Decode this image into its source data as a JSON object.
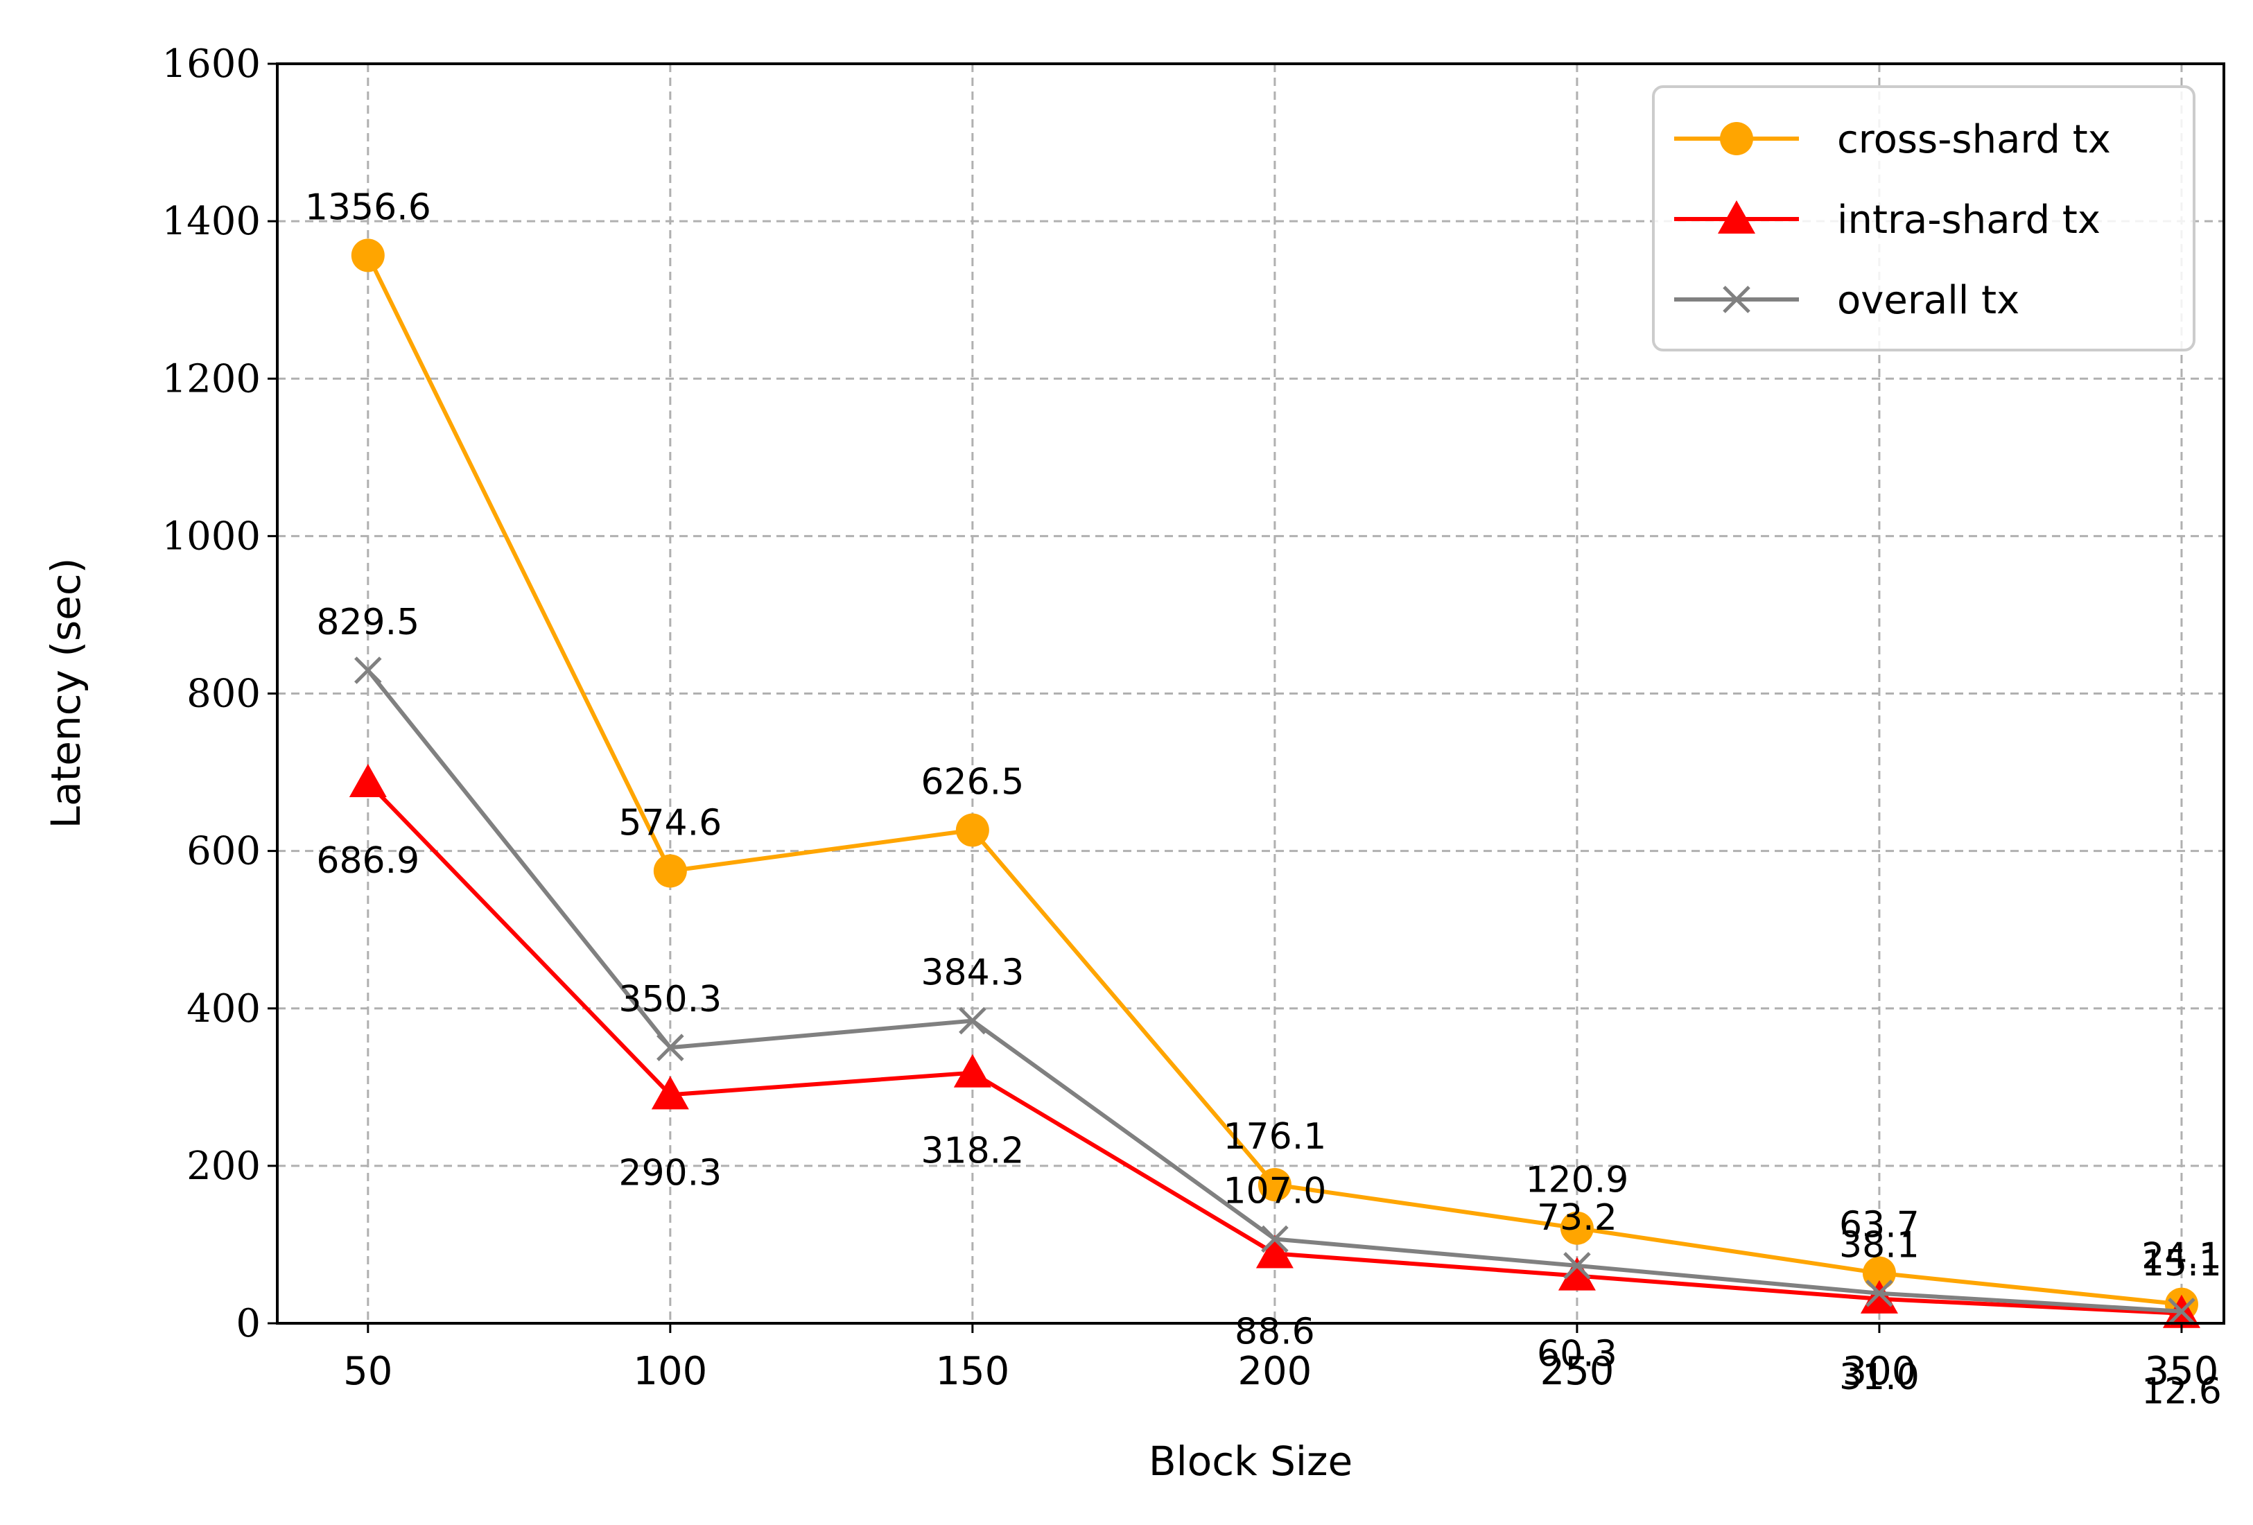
{
  "chart_data": {
    "type": "line",
    "title": "",
    "xlabel": "Block Size",
    "ylabel": "Latency (sec)",
    "x": [
      50,
      100,
      150,
      200,
      250,
      300,
      350
    ],
    "xlim": [
      35,
      357
    ],
    "ylim": [
      0,
      1600
    ],
    "yticks": [
      0,
      200,
      400,
      600,
      800,
      1000,
      1200,
      1400,
      1600
    ],
    "grid": true,
    "legend_position": "top-right",
    "series": [
      {
        "name": "cross-shard tx",
        "color": "#FFA500",
        "marker": "circle",
        "values": [
          1356.6,
          574.6,
          626.5,
          176.1,
          120.9,
          63.7,
          24.1
        ],
        "labels": [
          "1356.6",
          "574.6",
          "626.5",
          "176.1",
          "120.9",
          "63.7",
          "24.1"
        ],
        "label_side": "above"
      },
      {
        "name": "intra-shard tx",
        "color": "#FF0000",
        "marker": "triangle",
        "values": [
          686.9,
          290.3,
          318.2,
          88.6,
          60.3,
          31.0,
          12.6
        ],
        "labels": [
          "686.9",
          "290.3",
          "318.2",
          "88.6",
          "60.3",
          "31.0",
          "12.6"
        ],
        "label_side": "below"
      },
      {
        "name": "overall tx",
        "color": "#808080",
        "marker": "x",
        "values": [
          829.5,
          350.3,
          384.3,
          107.0,
          73.2,
          38.1,
          15.1
        ],
        "labels": [
          "829.5",
          "350.3",
          "384.3",
          "107.0",
          "73.2",
          "38.1",
          "15.1"
        ],
        "label_side": "above"
      }
    ]
  }
}
